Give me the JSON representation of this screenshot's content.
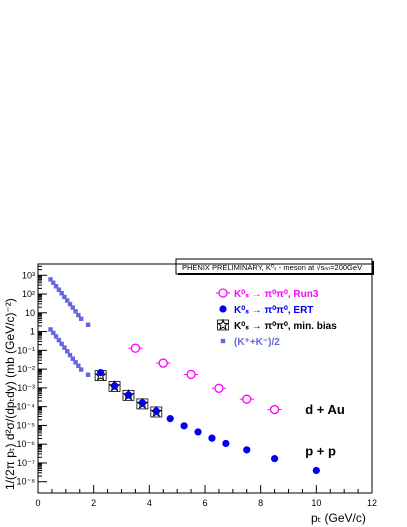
{
  "chart_data": {
    "type": "scatter",
    "header": "PHENIX PRELIMINARY, K⁰ₛ - meson at √sₙₙ=200GeV",
    "xlabel": "pₜ (GeV/c)",
    "ylabel": "1/(2π pₜ) d²σ/(dpₜdy) (mb (GeV/c)⁻²)",
    "xlim": [
      0,
      12
    ],
    "ylim_log10": [
      -8.6,
      3.6
    ],
    "log_y": true,
    "x_ticks": [
      "0",
      "2",
      "4",
      "6",
      "8",
      "10",
      "12"
    ],
    "x_tick_values": [
      0,
      2,
      4,
      6,
      8,
      10,
      12
    ],
    "y_ticks": [
      "10⁻⁸",
      "10⁻⁷",
      "10⁻⁶",
      "10⁻⁵",
      "10⁻⁴",
      "10⁻³",
      "10⁻²",
      "10⁻¹",
      "1",
      "10",
      "10²",
      "10³"
    ],
    "y_tick_exponents": [
      -8,
      -7,
      -6,
      -5,
      -4,
      -3,
      -2,
      -1,
      0,
      1,
      2,
      3
    ],
    "legend_position": "top-right",
    "series": [
      {
        "name": "K⁰ₛ → π⁰π⁰, Run3",
        "color": "#ff00ff",
        "marker": "open-circle",
        "points": [
          [
            3.5,
            0.13
          ],
          [
            4.5,
            0.021
          ],
          [
            5.5,
            0.0052
          ],
          [
            6.5,
            0.00095
          ],
          [
            7.5,
            0.00025
          ],
          [
            8.5,
            7e-05
          ]
        ]
      },
      {
        "name": "K⁰ₛ → π⁰π⁰, ERT",
        "color": "#0000ee",
        "marker": "filled-circle",
        "points": [
          [
            2.25,
            0.0065
          ],
          [
            2.75,
            0.0013
          ],
          [
            3.25,
            0.00042
          ],
          [
            3.75,
            0.00016
          ],
          [
            4.25,
            5.8e-05
          ],
          [
            4.75,
            2.3e-05
          ],
          [
            5.25,
            9.5e-06
          ],
          [
            5.75,
            4.5e-06
          ],
          [
            6.25,
            2.1e-06
          ],
          [
            6.75,
            1.1e-06
          ],
          [
            7.5,
            5e-07
          ],
          [
            8.5,
            1.7e-07
          ],
          [
            10.0,
            4e-08
          ]
        ]
      },
      {
        "name": "K⁰ₛ → π⁰π⁰, min. bias",
        "color": "#000000",
        "marker": "open-star",
        "points": [
          [
            2.25,
            0.0045
          ],
          [
            2.75,
            0.0012
          ],
          [
            3.25,
            0.0004
          ],
          [
            3.75,
            0.00014
          ],
          [
            4.25,
            5.2e-05
          ]
        ]
      },
      {
        "name": "(K⁺+K⁻)/2",
        "color": "#6666dd",
        "marker": "filled-square",
        "points": [
          [
            0.45,
            600
          ],
          [
            0.55,
            400
          ],
          [
            0.65,
            260
          ],
          [
            0.75,
            170
          ],
          [
            0.85,
            110
          ],
          [
            0.95,
            70
          ],
          [
            1.05,
            45
          ],
          [
            1.15,
            29
          ],
          [
            1.25,
            19
          ],
          [
            1.35,
            12
          ],
          [
            1.45,
            7.5
          ],
          [
            1.55,
            4.8
          ],
          [
            1.8,
            2.3
          ],
          [
            0.45,
            1.3
          ],
          [
            0.55,
            0.85
          ],
          [
            0.65,
            0.55
          ],
          [
            0.75,
            0.35
          ],
          [
            0.85,
            0.22
          ],
          [
            0.95,
            0.14
          ],
          [
            1.05,
            0.09
          ],
          [
            1.15,
            0.056
          ],
          [
            1.25,
            0.036
          ],
          [
            1.35,
            0.023
          ],
          [
            1.45,
            0.015
          ],
          [
            1.55,
            0.0095
          ],
          [
            1.8,
            0.005
          ]
        ]
      }
    ],
    "annotations": [
      {
        "text": "d + Au",
        "x": 9.6,
        "y": 4e-05
      },
      {
        "text": "p + p",
        "x": 9.6,
        "y": 2.5e-07
      }
    ]
  }
}
